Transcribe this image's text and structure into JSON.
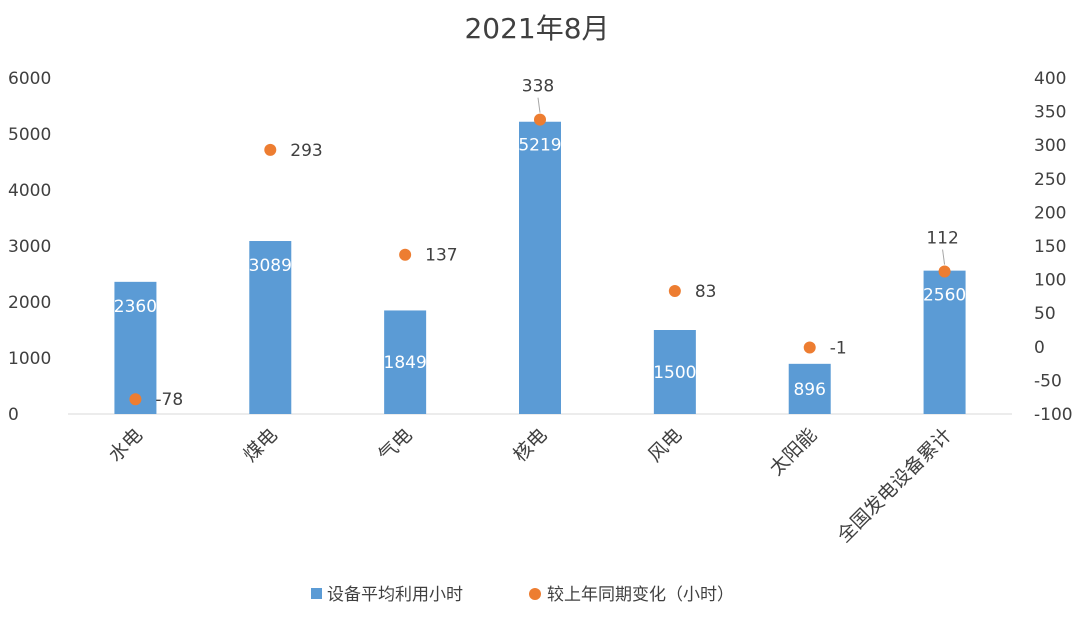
{
  "chart_data": {
    "type": "bar",
    "title": "2021年8月",
    "categories": [
      "水电",
      "煤电",
      "气电",
      "核电",
      "风电",
      "太阳能",
      "全国发电设备累计"
    ],
    "series": [
      {
        "name": "设备平均利用小时",
        "type": "bar",
        "axis": "left",
        "color": "#5b9bd5",
        "values": [
          2360,
          3089,
          1849,
          5219,
          1500,
          896,
          2560
        ]
      },
      {
        "name": "较上年同期变化（小时）",
        "type": "scatter",
        "axis": "right",
        "color": "#ed7d31",
        "values": [
          -78,
          293,
          137,
          338,
          83,
          -1,
          112
        ]
      }
    ],
    "y_left": {
      "min": 0,
      "max": 6000,
      "ticks": [
        0,
        1000,
        2000,
        3000,
        4000,
        5000,
        6000
      ]
    },
    "y_right": {
      "min": -100,
      "max": 400,
      "ticks": [
        -100,
        -50,
        0,
        50,
        100,
        150,
        200,
        250,
        300,
        350,
        400
      ]
    },
    "legend_position": "bottom",
    "grid": false
  }
}
